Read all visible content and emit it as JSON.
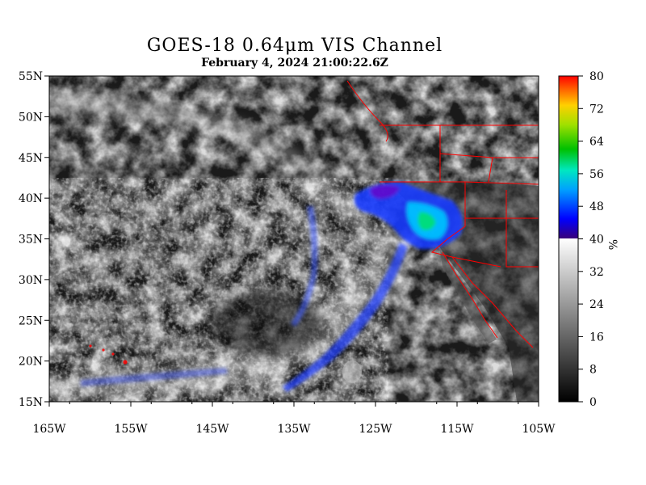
{
  "title": "GOES-18  0.64μm VIS Channel",
  "timestamp": "February  4,  2024 21:00:22.6Z",
  "map": {
    "lon_range": [
      -165,
      -105
    ],
    "lat_range": [
      15,
      55
    ],
    "lat_labels": [
      "55N",
      "50N",
      "45N",
      "40N",
      "35N",
      "30N",
      "25N",
      "20N",
      "15N"
    ],
    "lon_labels": [
      "165W",
      "155W",
      "145W",
      "135W",
      "125W",
      "115W",
      "105W"
    ],
    "border_color": "#ff0000"
  },
  "colorbar": {
    "unit": "%",
    "range": [
      0,
      80
    ],
    "labels": [
      "80",
      "72",
      "64",
      "56",
      "48",
      "40",
      "32",
      "24",
      "16",
      "8",
      "0"
    ],
    "grayscale_range": [
      0,
      40
    ],
    "color_range": [
      40,
      80
    ]
  }
}
